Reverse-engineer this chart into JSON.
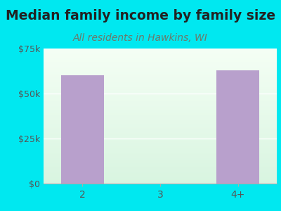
{
  "title": "Median family income by family size",
  "subtitle": "All residents in Hawkins, WI",
  "categories": [
    "2",
    "3",
    "4+"
  ],
  "values": [
    60000,
    0,
    63000
  ],
  "bar_color": "#b8a0cc",
  "background_color": "#00e8f0",
  "title_color": "#222222",
  "subtitle_color": "#6a7a6a",
  "tick_color": "#555555",
  "ylim": [
    0,
    75000
  ],
  "yticks": [
    0,
    25000,
    50000,
    75000
  ],
  "ytick_labels": [
    "$0",
    "$25k",
    "$50k",
    "$75k"
  ],
  "title_fontsize": 13.5,
  "subtitle_fontsize": 10,
  "bar_width": 0.55,
  "grid_color": "#ccddcc"
}
